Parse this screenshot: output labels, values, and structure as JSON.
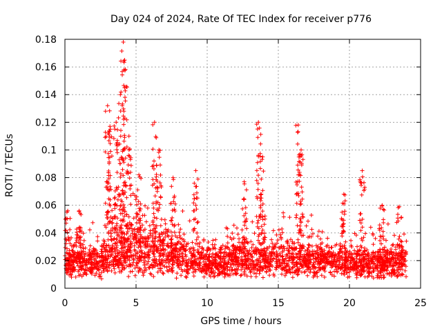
{
  "chart_data": {
    "type": "scatter",
    "title": "Day 024 of 2024, Rate Of TEC Index for receiver p776",
    "xlabel": "GPS time / hours",
    "ylabel": "ROTI / TECUs",
    "xlim": [
      0,
      25
    ],
    "ylim": [
      0,
      0.18
    ],
    "x_ticks": [
      0,
      5,
      10,
      15,
      20,
      25
    ],
    "x_tick_labels": [
      "0",
      "5",
      "10",
      "15",
      "20",
      "25"
    ],
    "y_ticks": [
      0,
      0.02,
      0.04,
      0.06,
      0.08,
      0.1,
      0.12,
      0.14,
      0.16,
      0.18
    ],
    "y_tick_labels": [
      "0",
      "0.02",
      "0.04",
      "0.06",
      "0.08",
      "0.1",
      "0.12",
      "0.14",
      "0.16",
      "0.18"
    ],
    "grid": true,
    "marker": "+",
    "series_color": "#ff0000",
    "data_range_hours": [
      0,
      24
    ],
    "peaks": [
      {
        "x": 0.2,
        "y": 0.056
      },
      {
        "x": 1.0,
        "y": 0.056
      },
      {
        "x": 3.0,
        "y": 0.132
      },
      {
        "x": 3.2,
        "y": 0.115
      },
      {
        "x": 3.6,
        "y": 0.12
      },
      {
        "x": 3.9,
        "y": 0.14
      },
      {
        "x": 4.1,
        "y": 0.178
      },
      {
        "x": 4.2,
        "y": 0.165
      },
      {
        "x": 4.5,
        "y": 0.11
      },
      {
        "x": 5.2,
        "y": 0.082
      },
      {
        "x": 6.3,
        "y": 0.12
      },
      {
        "x": 6.6,
        "y": 0.1
      },
      {
        "x": 7.6,
        "y": 0.08
      },
      {
        "x": 9.2,
        "y": 0.085
      },
      {
        "x": 12.6,
        "y": 0.077
      },
      {
        "x": 13.6,
        "y": 0.12
      },
      {
        "x": 13.9,
        "y": 0.095
      },
      {
        "x": 16.4,
        "y": 0.118
      },
      {
        "x": 16.6,
        "y": 0.1
      },
      {
        "x": 19.6,
        "y": 0.068
      },
      {
        "x": 20.9,
        "y": 0.085
      },
      {
        "x": 22.3,
        "y": 0.06
      },
      {
        "x": 23.5,
        "y": 0.059
      }
    ],
    "background_level": [
      {
        "x": 0.5,
        "base": 0.015,
        "spread": 0.03
      },
      {
        "x": 2.5,
        "base": 0.015,
        "spread": 0.035
      },
      {
        "x": 4.0,
        "base": 0.025,
        "spread": 0.05
      },
      {
        "x": 6.0,
        "base": 0.022,
        "spread": 0.045
      },
      {
        "x": 8.0,
        "base": 0.02,
        "spread": 0.035
      },
      {
        "x": 10.5,
        "base": 0.015,
        "spread": 0.025
      },
      {
        "x": 13.0,
        "base": 0.018,
        "spread": 0.03
      },
      {
        "x": 16.0,
        "base": 0.018,
        "spread": 0.035
      },
      {
        "x": 19.0,
        "base": 0.016,
        "spread": 0.03
      },
      {
        "x": 22.0,
        "base": 0.014,
        "spread": 0.03
      },
      {
        "x": 24.0,
        "base": 0.015,
        "spread": 0.035
      }
    ]
  }
}
